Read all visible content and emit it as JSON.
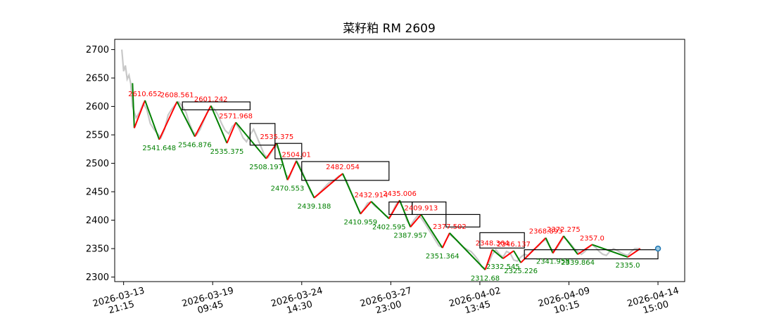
{
  "chart_data": {
    "type": "line",
    "title": "菜籽粕 RM 2609",
    "xlabel": "",
    "ylabel": "",
    "ylim": [
      2292,
      2718
    ],
    "yticks": [
      2300,
      2350,
      2400,
      2450,
      2500,
      2550,
      2600,
      2650,
      2700
    ],
    "xlim": [
      -0.1,
      6.3
    ],
    "xticks": [
      {
        "pos": 0,
        "line1": "2026-03-13",
        "line2": "21:15"
      },
      {
        "pos": 1,
        "line1": "2026-03-19",
        "line2": "09:45"
      },
      {
        "pos": 2,
        "line1": "2026-03-24",
        "line2": "14:30"
      },
      {
        "pos": 3,
        "line1": "2026-03-27",
        "line2": "23:00"
      },
      {
        "pos": 4,
        "line1": "2026-04-02",
        "line2": "13:45"
      },
      {
        "pos": 5,
        "line1": "2026-04-09",
        "line2": "10:15"
      },
      {
        "pos": 6,
        "line1": "2026-04-14",
        "line2": "15:00"
      }
    ],
    "colors": {
      "price": "#c8c8c8",
      "up": "#ff0000",
      "down": "#008000",
      "box": "#000000",
      "last": "#1f77b4"
    },
    "price_series": [
      [
        -0.02,
        2700
      ],
      [
        0.0,
        2662
      ],
      [
        0.02,
        2672
      ],
      [
        0.04,
        2648
      ],
      [
        0.06,
        2655
      ],
      [
        0.08,
        2640
      ],
      [
        0.1,
        2600
      ],
      [
        0.14,
        2580
      ],
      [
        0.18,
        2590
      ],
      [
        0.22,
        2605
      ],
      [
        0.26,
        2595
      ],
      [
        0.3,
        2570
      ],
      [
        0.34,
        2560
      ],
      [
        0.38,
        2552
      ],
      [
        0.42,
        2545
      ],
      [
        0.46,
        2560
      ],
      [
        0.5,
        2585
      ],
      [
        0.54,
        2595
      ],
      [
        0.58,
        2603
      ],
      [
        0.62,
        2608
      ],
      [
        0.66,
        2600
      ],
      [
        0.7,
        2590
      ],
      [
        0.74,
        2570
      ],
      [
        0.78,
        2555
      ],
      [
        0.82,
        2550
      ],
      [
        0.86,
        2560
      ],
      [
        0.9,
        2575
      ],
      [
        0.94,
        2590
      ],
      [
        0.98,
        2600
      ],
      [
        1.02,
        2595
      ],
      [
        1.06,
        2585
      ],
      [
        1.1,
        2570
      ],
      [
        1.14,
        2558
      ],
      [
        1.18,
        2552
      ],
      [
        1.22,
        2565
      ],
      [
        1.26,
        2570
      ],
      [
        1.3,
        2560
      ],
      [
        1.34,
        2545
      ],
      [
        1.38,
        2538
      ],
      [
        1.42,
        2550
      ],
      [
        1.46,
        2560
      ],
      [
        1.5,
        2545
      ],
      [
        1.54,
        2530
      ],
      [
        1.58,
        2515
      ],
      [
        1.62,
        2510
      ],
      [
        1.66,
        2520
      ],
      [
        1.7,
        2532
      ],
      [
        1.74,
        2525
      ],
      [
        1.78,
        2505
      ],
      [
        1.82,
        2480
      ],
      [
        1.86,
        2475
      ],
      [
        1.9,
        2490
      ],
      [
        1.94,
        2505
      ],
      [
        1.98,
        2495
      ],
      [
        2.02,
        2480
      ],
      [
        2.06,
        2465
      ],
      [
        2.1,
        2450
      ],
      [
        2.14,
        2440
      ],
      [
        2.18,
        2445
      ],
      [
        2.24,
        2455
      ],
      [
        2.3,
        2465
      ],
      [
        2.36,
        2470
      ],
      [
        2.42,
        2478
      ],
      [
        2.46,
        2480
      ],
      [
        2.5,
        2470
      ],
      [
        2.54,
        2455
      ],
      [
        2.58,
        2440
      ],
      [
        2.62,
        2425
      ],
      [
        2.66,
        2412
      ],
      [
        2.7,
        2420
      ],
      [
        2.74,
        2430
      ],
      [
        2.78,
        2432
      ],
      [
        2.82,
        2425
      ],
      [
        2.86,
        2420
      ],
      [
        2.9,
        2415
      ],
      [
        2.94,
        2408
      ],
      [
        2.98,
        2405
      ],
      [
        3.02,
        2415
      ],
      [
        3.06,
        2428
      ],
      [
        3.1,
        2433
      ],
      [
        3.14,
        2420
      ],
      [
        3.18,
        2400
      ],
      [
        3.22,
        2390
      ],
      [
        3.26,
        2400
      ],
      [
        3.3,
        2408
      ],
      [
        3.34,
        2404
      ],
      [
        3.38,
        2395
      ],
      [
        3.42,
        2385
      ],
      [
        3.46,
        2375
      ],
      [
        3.5,
        2365
      ],
      [
        3.54,
        2355
      ],
      [
        3.58,
        2352
      ],
      [
        3.62,
        2365
      ],
      [
        3.66,
        2375
      ],
      [
        3.7,
        2370
      ],
      [
        3.74,
        2365
      ],
      [
        3.78,
        2358
      ],
      [
        3.82,
        2352
      ],
      [
        3.86,
        2348
      ],
      [
        3.9,
        2345
      ],
      [
        3.94,
        2338
      ],
      [
        3.98,
        2330
      ],
      [
        4.02,
        2318
      ],
      [
        4.06,
        2315
      ],
      [
        4.1,
        2325
      ],
      [
        4.14,
        2340
      ],
      [
        4.18,
        2348
      ],
      [
        4.22,
        2340
      ],
      [
        4.26,
        2335
      ],
      [
        4.3,
        2345
      ],
      [
        4.34,
        2342
      ],
      [
        4.38,
        2330
      ],
      [
        4.42,
        2328
      ],
      [
        4.46,
        2335
      ],
      [
        4.5,
        2340
      ],
      [
        4.54,
        2338
      ],
      [
        4.58,
        2345
      ],
      [
        4.62,
        2350
      ],
      [
        4.66,
        2355
      ],
      [
        4.7,
        2362
      ],
      [
        4.74,
        2366
      ],
      [
        4.78,
        2355
      ],
      [
        4.82,
        2345
      ],
      [
        4.86,
        2350
      ],
      [
        4.9,
        2360
      ],
      [
        4.94,
        2370
      ],
      [
        4.98,
        2365
      ],
      [
        5.02,
        2358
      ],
      [
        5.06,
        2350
      ],
      [
        5.1,
        2345
      ],
      [
        5.14,
        2340
      ],
      [
        5.18,
        2345
      ],
      [
        5.22,
        2352
      ],
      [
        5.26,
        2357
      ],
      [
        5.3,
        2352
      ],
      [
        5.34,
        2345
      ],
      [
        5.38,
        2340
      ],
      [
        5.42,
        2338
      ],
      [
        5.46,
        2345
      ],
      [
        5.5,
        2350
      ],
      [
        5.54,
        2347
      ],
      [
        5.58,
        2343
      ],
      [
        5.62,
        2340
      ],
      [
        5.66,
        2338
      ],
      [
        5.7,
        2345
      ],
      [
        5.74,
        2350
      ],
      [
        5.78,
        2350
      ],
      [
        5.8,
        2350
      ]
    ],
    "pivots": [
      {
        "x": 0.1,
        "y": 2641
      },
      {
        "x": 0.12,
        "y": 2562
      },
      {
        "x": 0.24,
        "y": 2610.652
      },
      {
        "x": 0.4,
        "y": 2541.648
      },
      {
        "x": 0.6,
        "y": 2608.561
      },
      {
        "x": 0.8,
        "y": 2546.876
      },
      {
        "x": 0.98,
        "y": 2601.242
      },
      {
        "x": 1.16,
        "y": 2535.375
      },
      {
        "x": 1.26,
        "y": 2571.968
      },
      {
        "x": 1.6,
        "y": 2508.197
      },
      {
        "x": 1.72,
        "y": 2535.375
      },
      {
        "x": 1.84,
        "y": 2470.553
      },
      {
        "x": 1.94,
        "y": 2504.01
      },
      {
        "x": 2.14,
        "y": 2439.188
      },
      {
        "x": 2.46,
        "y": 2482.054
      },
      {
        "x": 2.66,
        "y": 2410.959
      },
      {
        "x": 2.78,
        "y": 2432.914
      },
      {
        "x": 2.98,
        "y": 2402.595
      },
      {
        "x": 3.1,
        "y": 2435.006
      },
      {
        "x": 3.22,
        "y": 2387.957
      },
      {
        "x": 3.34,
        "y": 2409.913
      },
      {
        "x": 3.58,
        "y": 2351.364
      },
      {
        "x": 3.66,
        "y": 2377.502
      },
      {
        "x": 4.06,
        "y": 2312.68
      },
      {
        "x": 4.14,
        "y": 2348.364
      },
      {
        "x": 4.26,
        "y": 2332.545
      },
      {
        "x": 4.38,
        "y": 2346.137
      },
      {
        "x": 4.46,
        "y": 2325.226
      },
      {
        "x": 4.74,
        "y": 2368.893
      },
      {
        "x": 4.82,
        "y": 2341.958
      },
      {
        "x": 4.94,
        "y": 2372.275
      },
      {
        "x": 5.1,
        "y": 2339.864
      },
      {
        "x": 5.26,
        "y": 2357.0
      },
      {
        "x": 5.66,
        "y": 2335.0
      },
      {
        "x": 5.8,
        "y": 2350
      }
    ],
    "annotations": [
      {
        "text": "2610.652",
        "x": 0.24,
        "y": 2610.652,
        "kind": "high"
      },
      {
        "text": "2541.648",
        "x": 0.4,
        "y": 2541.648,
        "kind": "low"
      },
      {
        "text": "2608.561",
        "x": 0.6,
        "y": 2608.561,
        "kind": "high"
      },
      {
        "text": "2546.876",
        "x": 0.8,
        "y": 2546.876,
        "kind": "low"
      },
      {
        "text": "2601.242",
        "x": 0.98,
        "y": 2601.242,
        "kind": "high"
      },
      {
        "text": "2535.375",
        "x": 1.16,
        "y": 2535.375,
        "kind": "low"
      },
      {
        "text": "2571.968",
        "x": 1.26,
        "y": 2571.968,
        "kind": "high"
      },
      {
        "text": "2508.197",
        "x": 1.6,
        "y": 2508.197,
        "kind": "low"
      },
      {
        "text": "2535.375",
        "x": 1.72,
        "y": 2535.375,
        "kind": "high"
      },
      {
        "text": "2470.553",
        "x": 1.84,
        "y": 2470.553,
        "kind": "low"
      },
      {
        "text": "2504.01",
        "x": 1.94,
        "y": 2504.01,
        "kind": "high"
      },
      {
        "text": "2439.188",
        "x": 2.14,
        "y": 2439.188,
        "kind": "low"
      },
      {
        "text": "2482.054",
        "x": 2.46,
        "y": 2482.054,
        "kind": "high"
      },
      {
        "text": "2410.959",
        "x": 2.66,
        "y": 2410.959,
        "kind": "low"
      },
      {
        "text": "2432.914",
        "x": 2.78,
        "y": 2432.914,
        "kind": "high"
      },
      {
        "text": "2402.595",
        "x": 2.98,
        "y": 2402.595,
        "kind": "low"
      },
      {
        "text": "2435.006",
        "x": 3.1,
        "y": 2435.006,
        "kind": "high"
      },
      {
        "text": "2387.957",
        "x": 3.22,
        "y": 2387.957,
        "kind": "low"
      },
      {
        "text": "2409.913",
        "x": 3.34,
        "y": 2409.913,
        "kind": "high"
      },
      {
        "text": "2351.364",
        "x": 3.58,
        "y": 2351.364,
        "kind": "low"
      },
      {
        "text": "2377.502",
        "x": 3.66,
        "y": 2377.502,
        "kind": "high"
      },
      {
        "text": "2312.68",
        "x": 4.06,
        "y": 2312.68,
        "kind": "low"
      },
      {
        "text": "2348.364",
        "x": 4.14,
        "y": 2348.364,
        "kind": "high"
      },
      {
        "text": "2332.545",
        "x": 4.26,
        "y": 2332.545,
        "kind": "low"
      },
      {
        "text": "2346.137",
        "x": 4.38,
        "y": 2346.137,
        "kind": "high"
      },
      {
        "text": "2325.226",
        "x": 4.46,
        "y": 2325.226,
        "kind": "low"
      },
      {
        "text": "2368.893",
        "x": 4.74,
        "y": 2368.893,
        "kind": "high"
      },
      {
        "text": "2341.958",
        "x": 4.82,
        "y": 2341.958,
        "kind": "low"
      },
      {
        "text": "2372.275",
        "x": 4.94,
        "y": 2372.275,
        "kind": "high"
      },
      {
        "text": "2339.864",
        "x": 5.1,
        "y": 2339.864,
        "kind": "low"
      },
      {
        "text": "2357.0",
        "x": 5.26,
        "y": 2357.0,
        "kind": "high"
      },
      {
        "text": "2335.0",
        "x": 5.66,
        "y": 2335.0,
        "kind": "low"
      }
    ],
    "boxes": [
      {
        "x0": 0.66,
        "x1": 1.42,
        "y0": 2594,
        "y1": 2608
      },
      {
        "x0": 1.42,
        "x1": 1.7,
        "y0": 2532,
        "y1": 2570
      },
      {
        "x0": 1.7,
        "x1": 2.0,
        "y0": 2508,
        "y1": 2535
      },
      {
        "x0": 2.0,
        "x1": 2.98,
        "y0": 2470,
        "y1": 2503
      },
      {
        "x0": 2.98,
        "x1": 3.24,
        "y0": 2410,
        "y1": 2432
      },
      {
        "x0": 3.24,
        "x1": 3.62,
        "y0": 2410,
        "y1": 2432
      },
      {
        "x0": 3.62,
        "x1": 4.0,
        "y0": 2388,
        "y1": 2410
      },
      {
        "x0": 4.0,
        "x1": 4.5,
        "y0": 2351,
        "y1": 2378
      },
      {
        "x0": 4.5,
        "x1": 6.0,
        "y0": 2332,
        "y1": 2348
      }
    ],
    "last_point": {
      "x": 6.0,
      "y": 2350
    },
    "grid": false,
    "legend": "none"
  }
}
